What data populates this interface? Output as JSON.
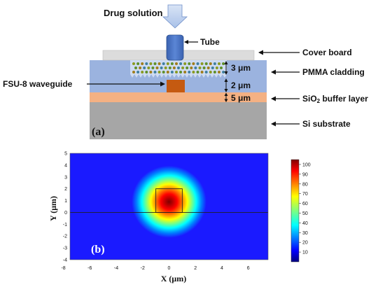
{
  "panel_a": {
    "panel_label": "(a)",
    "drug_solution": "Drug solution",
    "tube": "Tube",
    "cover_board": "Cover board",
    "pmma_cladding": "PMMA cladding",
    "fsu8_waveguide": "FSU-8 waveguide",
    "sio2_pre": "SiO",
    "sio2_sub": "2",
    "sio2_post": " buffer layer",
    "si_substrate": "Si substrate",
    "dim_3": "3 μm",
    "dim_2": "2 μm",
    "dim_5": "5 μm",
    "colors": {
      "cover": "#dcdcdc",
      "pmma": "#9bb3df",
      "buffer": "#f4b183",
      "substrate": "#a6a6a6",
      "waveguide": "#c55a11",
      "tube": "#4472c4"
    }
  },
  "chart_data": {
    "type": "heatmap",
    "panel_label": "(b)",
    "xlabel": "X (μm)",
    "ylabel": "Y (μm)",
    "xlim": [
      -7.5,
      7.5
    ],
    "ylim": [
      -4,
      5
    ],
    "x_ticks": [
      -8,
      -6,
      -4,
      -2,
      0,
      2,
      4,
      6
    ],
    "y_ticks": [
      -4,
      -3,
      -2,
      -1,
      0,
      1,
      2,
      3,
      4,
      5
    ],
    "colorbar_ticks": [
      10,
      20,
      30,
      40,
      50,
      60,
      70,
      80,
      90,
      100
    ],
    "colorbar_range": [
      0,
      105
    ],
    "mode_center": [
      0,
      0.9
    ],
    "waveguide_core": {
      "x": [
        -1,
        1
      ],
      "y": [
        0,
        2
      ]
    },
    "substrate_line_y": 0
  }
}
